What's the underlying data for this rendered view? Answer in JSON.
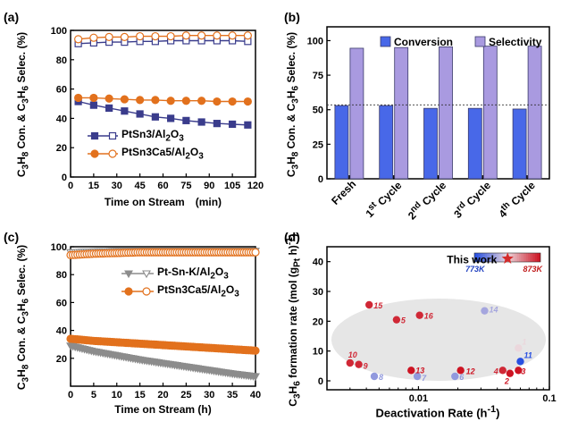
{
  "colors": {
    "navy": "#3a3c8c",
    "orange": "#e2711d",
    "grey": "#8c8c8c",
    "conversion": "#4868e8",
    "selectivity": "#a99ae0",
    "star": "#d42a2a",
    "ellipse": "#e6e6e6"
  },
  "chart_data": [
    {
      "type": "line",
      "panel_label": "(a)",
      "xlabel": "Time on Stream　(min)",
      "ylabel_html": "C<sub>3</sub>H<sub>8</sub> Con. &amp; C<sub>3</sub>H<sub>6</sub> Selec. (%)",
      "xlim": [
        0,
        120
      ],
      "ylim": [
        0,
        100
      ],
      "xticks": [
        0,
        15,
        30,
        45,
        60,
        75,
        90,
        105,
        120
      ],
      "yticks": [
        0,
        20,
        40,
        60,
        80,
        100
      ],
      "x": [
        5,
        15,
        25,
        35,
        45,
        55,
        65,
        75,
        85,
        95,
        105,
        115
      ],
      "series": [
        {
          "name": "PtSn3/Al2O3",
          "legend_html": "PtSn3/Al<sub>2</sub>O<sub>3</sub>",
          "kind": "conversion",
          "values": [
            51.5,
            49,
            47,
            45,
            43,
            41,
            40,
            38.5,
            37.5,
            36.5,
            36,
            35.5
          ]
        },
        {
          "name": "PtSn3/Al2O3",
          "kind": "selectivity",
          "values": [
            91,
            91.5,
            92,
            92,
            92.5,
            92.5,
            93,
            93,
            93,
            93,
            93,
            92.5
          ]
        },
        {
          "name": "PtSn3Ca5/Al2O3",
          "legend_html": "PtSn3Ca5/Al<sub>2</sub>O<sub>3</sub>",
          "kind": "conversion",
          "values": [
            54,
            54,
            53.5,
            53,
            52.5,
            52.5,
            52,
            52,
            52,
            51.5,
            51.5,
            51.5
          ]
        },
        {
          "name": "PtSn3Ca5/Al2O3",
          "kind": "selectivity",
          "values": [
            94,
            95,
            95.5,
            95.5,
            96,
            96,
            96,
            96.5,
            96.5,
            96.5,
            96.5,
            96.5
          ]
        }
      ]
    },
    {
      "type": "bar",
      "panel_label": "(b)",
      "ylabel_html": "C<sub>3</sub>H<sub>8</sub> Con. &amp; C<sub>3</sub>H<sub>6</sub> Selec. (%)",
      "ylim": [
        0,
        110
      ],
      "yticks": [
        0,
        25,
        50,
        75,
        100
      ],
      "categories_html": [
        "Fresh",
        "1<sup>st</sup> Cycle",
        "2<sup>nd</sup> Cycle",
        "3<sup>rd</sup> Cycle",
        "4<sup>th</sup> Cycle"
      ],
      "series": [
        {
          "name": "Conversion",
          "values": [
            53,
            53,
            51,
            51,
            50.5
          ]
        },
        {
          "name": "Selectivity",
          "values": [
            94.5,
            95,
            95.5,
            96,
            96
          ]
        }
      ],
      "reference_line": 53.5
    },
    {
      "type": "line",
      "panel_label": "(c)",
      "xlabel": "Time on Stream (h)",
      "ylabel_html": "C<sub>3</sub>H<sub>8</sub> Con. &amp; C<sub>3</sub>H<sub>6</sub> Selec. (%)",
      "xlim": [
        0,
        40
      ],
      "ylim": [
        0,
        100
      ],
      "xticks": [
        0,
        5,
        10,
        15,
        20,
        25,
        30,
        35,
        40
      ],
      "yticks": [
        20,
        40,
        60,
        80,
        100
      ],
      "series": [
        {
          "name": "Pt-Sn-K/Al2O3",
          "legend_html": "Pt-Sn-K/Al<sub>2</sub>O<sub>3</sub>",
          "kind": "conversion",
          "x": [
            0,
            5,
            10,
            15,
            20,
            25,
            30,
            35,
            40
          ],
          "values": [
            29,
            25,
            22,
            19,
            16.5,
            14,
            11.5,
            9,
            7
          ]
        },
        {
          "name": "Pt-Sn-K/Al2O3",
          "kind": "selectivity",
          "x": [
            0,
            5,
            10,
            15,
            20,
            25,
            30,
            35,
            40
          ],
          "values": [
            96,
            96.5,
            97,
            97,
            97,
            97,
            97,
            97,
            97
          ]
        },
        {
          "name": "PtSn3Ca5/Al2O3",
          "legend_html": "PtSn3Ca5/Al<sub>2</sub>O<sub>3</sub>",
          "kind": "conversion",
          "x": [
            0,
            5,
            10,
            15,
            20,
            25,
            30,
            35,
            40
          ],
          "values": [
            34,
            32.5,
            31.5,
            30.5,
            29.5,
            28.5,
            27.5,
            26.5,
            25.5
          ]
        },
        {
          "name": "PtSn3Ca5/Al2O3",
          "kind": "selectivity",
          "x": [
            0,
            5,
            10,
            15,
            20,
            25,
            30,
            35,
            40
          ],
          "values": [
            94,
            95,
            95.5,
            96,
            96,
            96,
            96,
            96,
            96
          ]
        }
      ]
    },
    {
      "type": "scatter",
      "panel_label": "(d)",
      "xlabel_html": "Deactivation Rate (h<sup>-1</sup>)",
      "ylabel_html": "C<sub>3</sub>H<sub>6</sub> formation rate (mol (g<sub>Pt</sub> h)<sup>-1</sup>)",
      "xscale": "log",
      "xlim": [
        0.002,
        0.1
      ],
      "ylim": [
        -3,
        45
      ],
      "xticks": [
        0.01,
        0.1
      ],
      "xtick_labels": [
        "0.01",
        "0.1"
      ],
      "yticks": [
        0,
        10,
        20,
        30,
        40
      ],
      "colorbar": {
        "low_label": "773K",
        "high_label": "873K"
      },
      "this_work": {
        "label": "This work",
        "x": 0.048,
        "y": 41
      },
      "points": [
        {
          "label": "1",
          "x": 0.058,
          "y": 11,
          "temp": 823
        },
        {
          "label": "2",
          "x": 0.05,
          "y": 2.5,
          "temp": 873
        },
        {
          "label": "3",
          "x": 0.058,
          "y": 3.5,
          "temp": 873
        },
        {
          "label": "4",
          "x": 0.044,
          "y": 3.5,
          "temp": 868
        },
        {
          "label": "5",
          "x": 0.0068,
          "y": 20.5,
          "temp": 868
        },
        {
          "label": "6",
          "x": 0.019,
          "y": 1.5,
          "temp": 800
        },
        {
          "label": "7",
          "x": 0.0098,
          "y": 1.5,
          "temp": 800
        },
        {
          "label": "8",
          "x": 0.0046,
          "y": 1.5,
          "temp": 800
        },
        {
          "label": "9",
          "x": 0.0035,
          "y": 5.5,
          "temp": 868
        },
        {
          "label": "10",
          "x": 0.003,
          "y": 6,
          "temp": 868
        },
        {
          "label": "11",
          "x": 0.06,
          "y": 6.5,
          "temp": 773
        },
        {
          "label": "12",
          "x": 0.021,
          "y": 3.5,
          "temp": 873
        },
        {
          "label": "13",
          "x": 0.0088,
          "y": 3.5,
          "temp": 873
        },
        {
          "label": "14",
          "x": 0.032,
          "y": 23.5,
          "temp": 805
        },
        {
          "label": "15",
          "x": 0.0042,
          "y": 25.5,
          "temp": 868
        },
        {
          "label": "16",
          "x": 0.0102,
          "y": 22,
          "temp": 868
        }
      ]
    }
  ]
}
